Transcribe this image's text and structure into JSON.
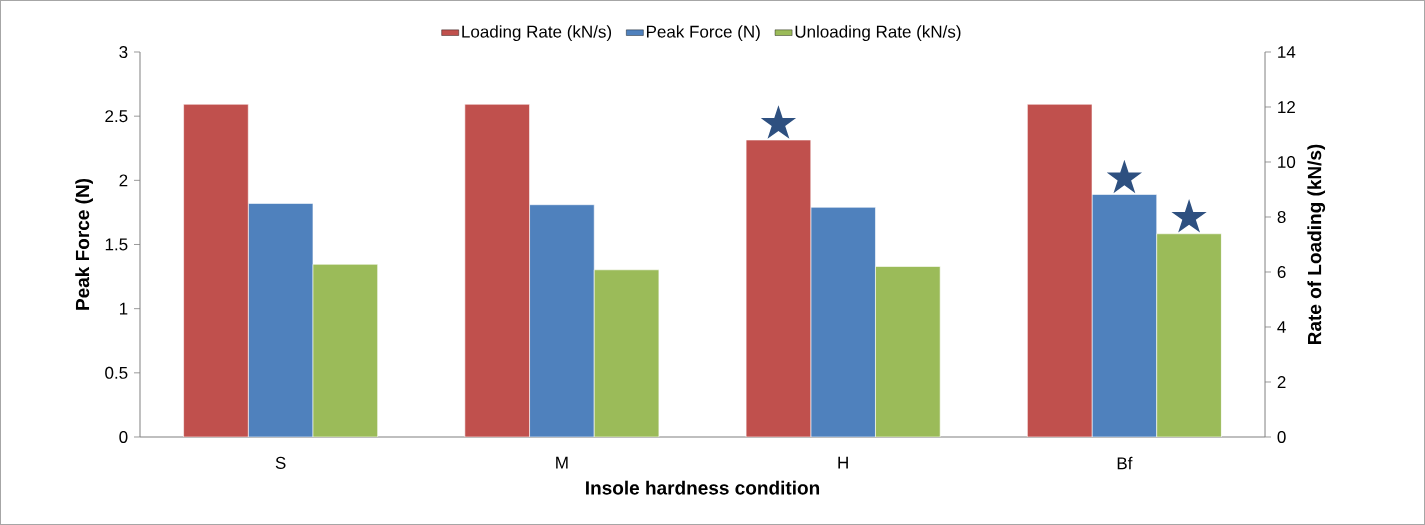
{
  "chart_data": {
    "type": "bar",
    "xlabel": "Insole hardness condition",
    "ylabel": "Peak Force (N)",
    "y2label": "Rate of Loading (kN/s)",
    "categories": [
      "S",
      "M",
      "H",
      "Bf"
    ],
    "series": [
      {
        "name": "Loading Rate (kN/s)",
        "color": "#c0504d",
        "axis": "y2",
        "values": [
          12.1,
          12.1,
          10.8,
          12.1
        ],
        "value_labels": [
          null,
          null,
          "★",
          null
        ]
      },
      {
        "name": "Peak Force (N)",
        "color": "#4f81bd",
        "values": [
          1.82,
          1.81,
          1.79,
          1.89
        ],
        "value_labels": [
          null,
          null,
          null,
          "★"
        ]
      },
      {
        "name": "Unloading Rate (kN/s)",
        "color": "#9bbb59",
        "axis": "y2",
        "values": [
          6.28,
          6.08,
          6.2,
          7.39
        ],
        "value_labels": [
          null,
          null,
          null,
          "★"
        ]
      }
    ],
    "ylim": [
      0,
      3
    ],
    "yticks": [
      0,
      0.5,
      1,
      1.5,
      2,
      2.5,
      3
    ],
    "y2lim": [
      0,
      14
    ],
    "y2ticks": [
      0,
      2,
      4,
      6,
      8,
      10,
      12,
      14
    ],
    "legend": "top",
    "grid": false
  }
}
